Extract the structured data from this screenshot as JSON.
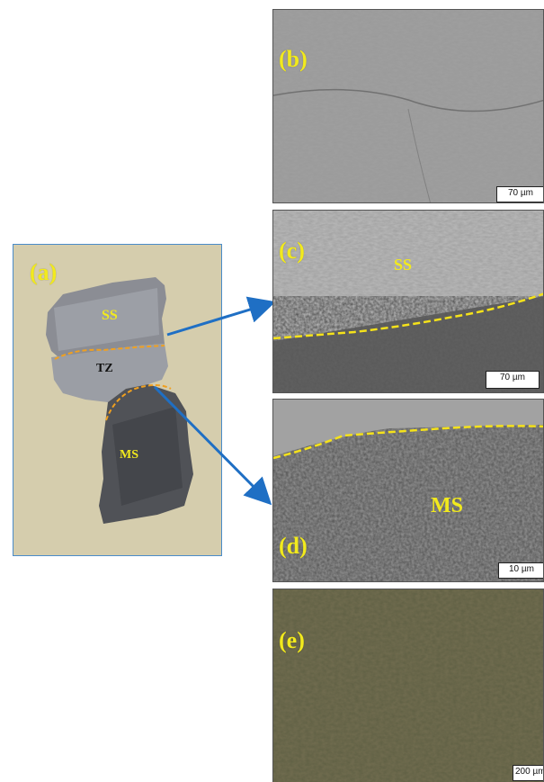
{
  "panels": {
    "a": {
      "label": "(a)",
      "regions": {
        "ss": "SS",
        "tz": "TZ",
        "ms": "MS"
      }
    },
    "b": {
      "label": "(b)",
      "scale": "70 µm"
    },
    "c": {
      "label": "(c)",
      "region": "SS",
      "scale": "70 µm"
    },
    "d": {
      "label": "(d)",
      "region": "MS",
      "scale": "10 µm"
    },
    "e": {
      "label": "(e)",
      "scale": "200 µm"
    }
  },
  "colors": {
    "boundary_dashed": "#f5e21a",
    "boundary_orange": "#f0a020",
    "arrow": "#1f6fc4",
    "label_yellow": "#f2ea1d",
    "mount_background": "#d9d2b3"
  }
}
